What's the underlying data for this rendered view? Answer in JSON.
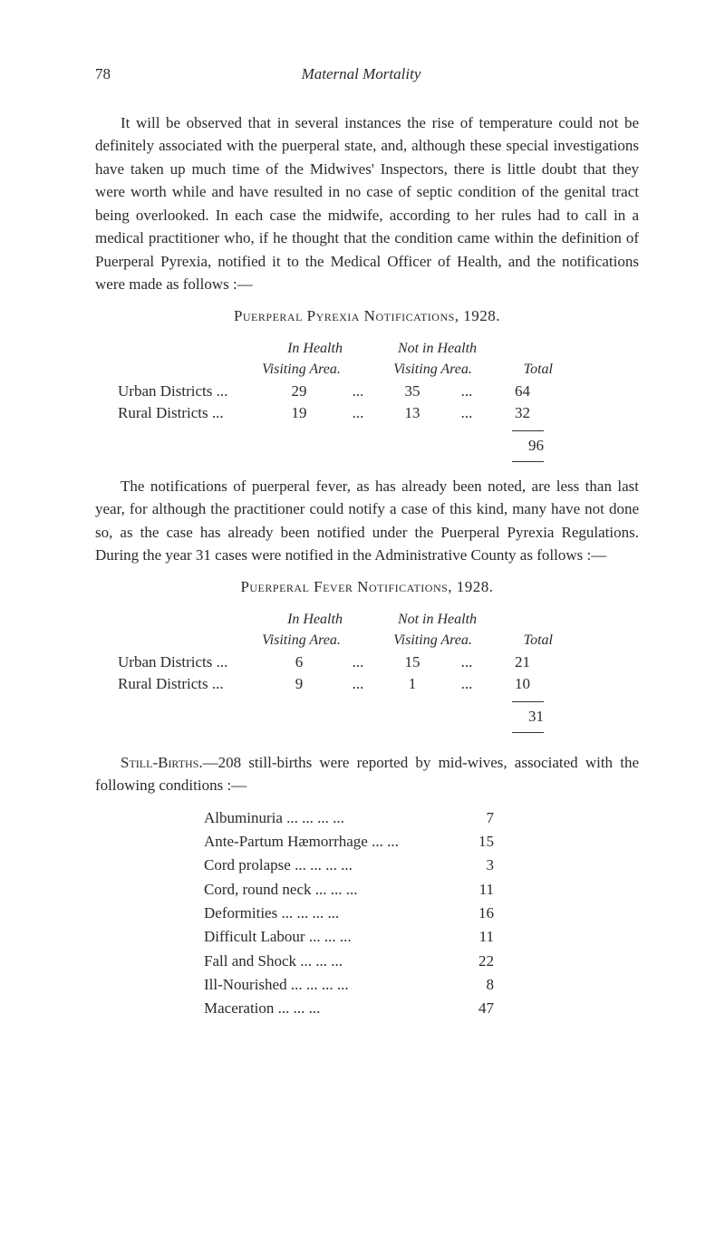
{
  "page_number": "78",
  "header_title": "Maternal Mortality",
  "para1": "It will be observed that in several instances the rise of temperature could not be definitely associated with the puerperal state, and, although these special investigations have taken up much time of the Midwives' Inspectors, there is little doubt that they were worth while and have resulted in no case of septic condition of the genital tract being overlooked. In each case the midwife, according to her rules had to call in a medical practitioner who, if he thought that the condition came within the definition of Puerperal Pyrexia, notified it to the Medical Officer of Health, and the notifications were made as follows :—",
  "section1_title": "Puerperal Pyrexia Notifications, 1928.",
  "col_headers": {
    "h1": "In Health",
    "h2": "Not in Health",
    "s1": "Visiting Area.",
    "s2": "Visiting Area.",
    "s3": "Total"
  },
  "table1": {
    "rows": [
      {
        "label": "Urban Districts ...",
        "v1": "29",
        "v2": "35",
        "v3": "64"
      },
      {
        "label": "Rural Districts ...",
        "v1": "19",
        "v2": "13",
        "v3": "32"
      }
    ],
    "total": "96"
  },
  "para2": "The notifications of puerperal fever, as has already been noted, are less than last year, for although the practitioner could notify a case of this kind, many have not done so, as the case has already been notified under the Puerperal Pyrexia Regulations. During the year 31 cases were notified in the Administrative County as follows :—",
  "section2_title": "Puerperal Fever Notifications, 1928.",
  "table2": {
    "rows": [
      {
        "label": "Urban Districts ...",
        "v1": "6",
        "v2": "15",
        "v3": "21"
      },
      {
        "label": "Rural Districts ...",
        "v1": "9",
        "v2": "1",
        "v3": "10"
      }
    ],
    "total": "31"
  },
  "para3_prefix": "Still-Births.",
  "para3": "—208 still-births were reported by mid-wives, associated with the following conditions :—",
  "list": [
    {
      "label": "Albuminuria    ...        ...         ...        ...",
      "val": "7"
    },
    {
      "label": "Ante-Partum Hæmorrhage ...        ...",
      "val": "15"
    },
    {
      "label": "Cord prolapse ...        ...         ...        ...",
      "val": "3"
    },
    {
      "label": "Cord, round neck        ...         ...        ...",
      "val": "11"
    },
    {
      "label": "Deformities      ...        ...         ...        ...",
      "val": "16"
    },
    {
      "label": "Difficult Labour          ...         ...        ...",
      "val": "11"
    },
    {
      "label": "Fall and Shock            ...         ...        ...",
      "val": "22"
    },
    {
      "label": "Ill-Nourished  ...         ...          ...        ...",
      "val": "8"
    },
    {
      "label": "Maceration                    ...         ...        ...",
      "val": "47"
    }
  ],
  "dots": "..."
}
